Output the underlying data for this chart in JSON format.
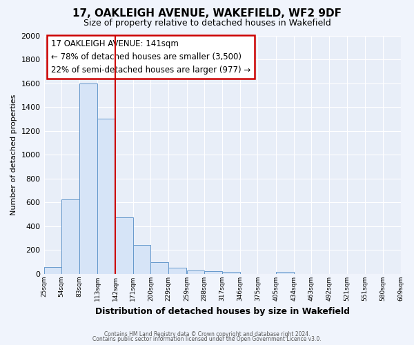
{
  "title": "17, OAKLEIGH AVENUE, WAKEFIELD, WF2 9DF",
  "subtitle": "Size of property relative to detached houses in Wakefield",
  "xlabel": "Distribution of detached houses by size in Wakefield",
  "ylabel": "Number of detached properties",
  "bar_left_edges": [
    25,
    54,
    83,
    113,
    142,
    171,
    200,
    229,
    259,
    288,
    317,
    346,
    375,
    405,
    434,
    463,
    492,
    521,
    551,
    580
  ],
  "bar_heights": [
    60,
    625,
    1600,
    1300,
    475,
    245,
    100,
    50,
    30,
    25,
    15,
    0,
    0,
    15,
    0,
    0,
    0,
    0,
    0,
    0
  ],
  "bin_width": 29,
  "bar_facecolor": "#d6e4f7",
  "bar_edgecolor": "#6699cc",
  "vline_x": 142,
  "vline_color": "#cc0000",
  "ylim": [
    0,
    2000
  ],
  "yticks": [
    0,
    200,
    400,
    600,
    800,
    1000,
    1200,
    1400,
    1600,
    1800,
    2000
  ],
  "xtick_labels": [
    "25sqm",
    "54sqm",
    "83sqm",
    "113sqm",
    "142sqm",
    "171sqm",
    "200sqm",
    "229sqm",
    "259sqm",
    "288sqm",
    "317sqm",
    "346sqm",
    "375sqm",
    "405sqm",
    "434sqm",
    "463sqm",
    "492sqm",
    "521sqm",
    "551sqm",
    "580sqm",
    "609sqm"
  ],
  "annotation_title": "17 OAKLEIGH AVENUE: 141sqm",
  "annotation_line1": "← 78% of detached houses are smaller (3,500)",
  "annotation_line2": "22% of semi-detached houses are larger (977) →",
  "bg_color": "#f0f4fc",
  "plot_bg_color": "#e8eef8",
  "grid_color": "#ffffff",
  "footer_line1": "Contains HM Land Registry data © Crown copyright and database right 2024.",
  "footer_line2": "Contains public sector information licensed under the Open Government Licence v3.0."
}
